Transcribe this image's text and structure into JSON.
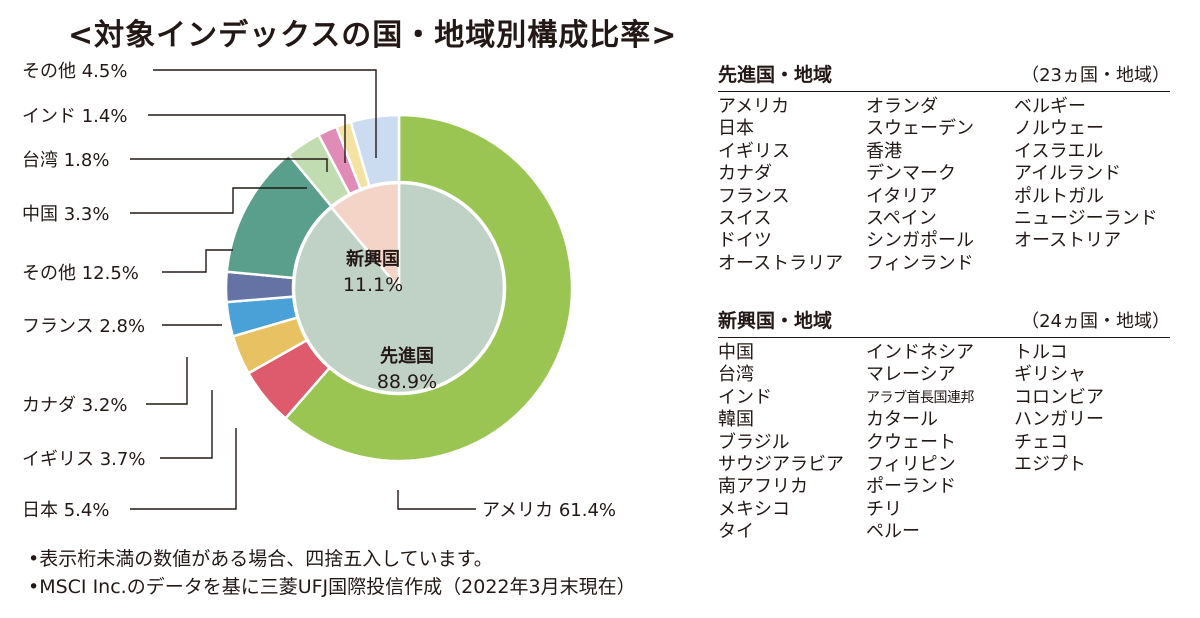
{
  "title": "<対象インデックスの国・地域別構成比率>",
  "chart_data": {
    "type": "pie",
    "outer_ring": [
      {
        "name": "アメリカ",
        "value": 61.4,
        "label": "アメリカ 61.4%",
        "color": "#9bc552",
        "group": "developed"
      },
      {
        "name": "日本",
        "value": 5.4,
        "label": "日本 5.4%",
        "color": "#dd5b6c",
        "group": "developed"
      },
      {
        "name": "イギリス",
        "value": 3.7,
        "label": "イギリス 3.7%",
        "color": "#e8c262",
        "group": "developed"
      },
      {
        "name": "カナダ",
        "value": 3.2,
        "label": "カナダ 3.2%",
        "color": "#4aa1d7",
        "group": "developed"
      },
      {
        "name": "フランス",
        "value": 2.8,
        "label": "フランス 2.8%",
        "color": "#6472a4",
        "group": "developed"
      },
      {
        "name": "その他",
        "value": 12.5,
        "label": "その他 12.5%",
        "color": "#5a9e8c",
        "group": "developed"
      },
      {
        "name": "中国",
        "value": 3.3,
        "label": "中国 3.3%",
        "color": "#c2dcb1",
        "group": "emerging"
      },
      {
        "name": "台湾",
        "value": 1.8,
        "label": "台湾 1.8%",
        "color": "#e08cb7",
        "group": "emerging"
      },
      {
        "name": "インド",
        "value": 1.4,
        "label": "インド 1.4%",
        "color": "#f4e2a2",
        "group": "emerging"
      },
      {
        "name": "その他",
        "value": 4.5,
        "label": "その他 4.5%",
        "color": "#cbdcf0",
        "group": "emerging"
      }
    ],
    "inner": [
      {
        "name": "先進国",
        "value": 88.9,
        "label": "88.9%",
        "color": "#c0d1c5"
      },
      {
        "name": "新興国",
        "value": 11.1,
        "label": "11.1%",
        "color": "#f4d4c6"
      }
    ]
  },
  "regions": {
    "developed": {
      "title": "先進国・地域",
      "count": "（23ヵ国・地域）",
      "columns": [
        [
          "アメリカ",
          "日本",
          "イギリス",
          "カナダ",
          "フランス",
          "スイス",
          "ドイツ",
          "オーストラリア"
        ],
        [
          "オランダ",
          "スウェーデン",
          "香港",
          "デンマーク",
          "イタリア",
          "スペイン",
          "シンガポール",
          "フィンランド"
        ],
        [
          "ベルギー",
          "ノルウェー",
          "イスラエル",
          "アイルランド",
          "ポルトガル",
          "ニュージーランド",
          "オーストリア"
        ]
      ]
    },
    "emerging": {
      "title": "新興国・地域",
      "count": "（24ヵ国・地域）",
      "columns": [
        [
          "中国",
          "台湾",
          "インド",
          "韓国",
          "ブラジル",
          "サウジアラビア",
          "南アフリカ",
          "メキシコ",
          "タイ"
        ],
        [
          "インドネシア",
          "マレーシア",
          "アラブ首長国連邦",
          "カタール",
          "クウェート",
          "フィリピン",
          "ポーランド",
          "チリ",
          "ペルー"
        ],
        [
          "トルコ",
          "ギリシャ",
          "コロンビア",
          "ハンガリー",
          "チェコ",
          "エジプト"
        ]
      ]
    }
  },
  "notes": [
    "•表示桁未満の数値がある場合、四捨五入しています。",
    "•MSCI Inc.のデータを基に三菱UFJ国際投信作成（2022年3月末現在）"
  ]
}
